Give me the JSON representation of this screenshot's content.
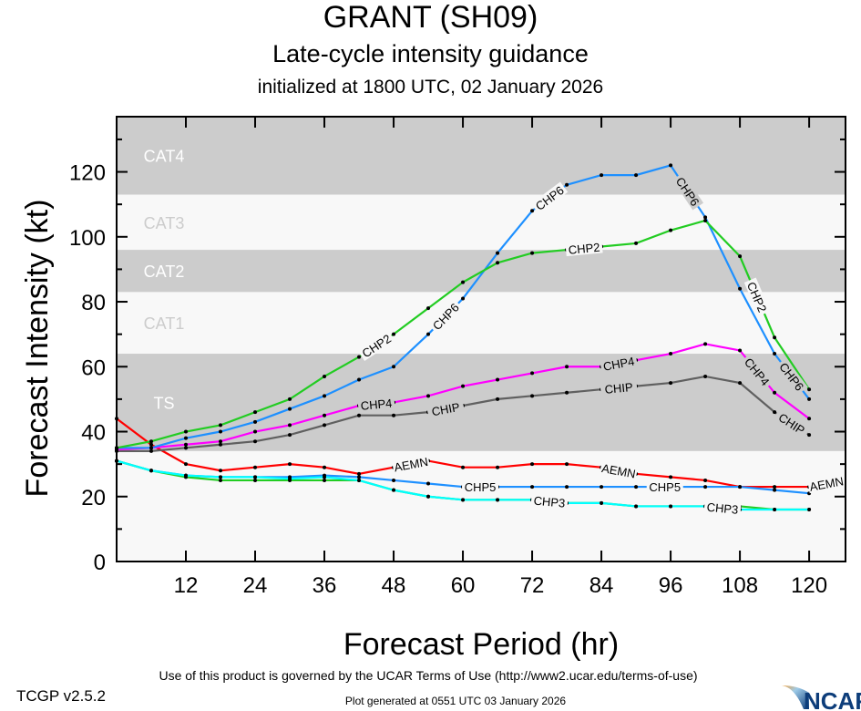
{
  "header": {
    "title": "GRANT (SH09)",
    "subtitle": "Late-cycle intensity guidance",
    "initialized": "initialized at 1800 UTC, 02 January 2026"
  },
  "footer": {
    "terms": "Use of this product is governed by the UCAR Terms of Use (http://www2.ucar.edu/terms-of-use)",
    "generated": "Plot generated at 0551 UTC   03 January 2026",
    "version": "TCGP v2.5.2",
    "logo_text": "NCAR"
  },
  "chart_data": {
    "type": "line",
    "xlabel": "Forecast Period (hr)",
    "ylabel": "Forecast Intensity (kt)",
    "xlim": [
      0,
      126.3
    ],
    "ylim": [
      0,
      137
    ],
    "xticks": [
      12,
      24,
      36,
      48,
      60,
      72,
      84,
      96,
      108,
      120
    ],
    "yticks": [
      0,
      20,
      40,
      60,
      80,
      100,
      120
    ],
    "grid": false,
    "bands": [
      {
        "label": "TS",
        "from": 34,
        "to": 64,
        "color": "#cccccc",
        "label_color": "#ffffff"
      },
      {
        "label": "CAT1",
        "from": 64,
        "to": 83,
        "color": "#f8f8f8",
        "label_color": "#cccccc"
      },
      {
        "label": "CAT2",
        "from": 83,
        "to": 96,
        "color": "#cccccc",
        "label_color": "#ffffff"
      },
      {
        "label": "CAT3",
        "from": 96,
        "to": 113,
        "color": "#f8f8f8",
        "label_color": "#cccccc"
      },
      {
        "label": "CAT4",
        "from": 113,
        "to": 137,
        "color": "#cccccc",
        "label_color": "#ffffff"
      },
      {
        "label": "",
        "from": 0,
        "to": 34,
        "color": "#f8f8f8",
        "label_color": "#cccccc"
      }
    ],
    "x": [
      0,
      6,
      12,
      18,
      24,
      30,
      36,
      42,
      48,
      54,
      60,
      66,
      72,
      78,
      84,
      90,
      96,
      102,
      108,
      114,
      120
    ],
    "series": [
      {
        "name": "AEMN",
        "color": "#ff0000",
        "x": [
          0,
          6,
          12,
          18,
          24,
          30,
          36,
          42,
          48,
          54,
          60,
          66,
          72,
          78,
          84,
          90,
          96,
          102,
          108,
          114,
          120,
          126
        ],
        "values": [
          44,
          36,
          30,
          28,
          29,
          30,
          29,
          27,
          29,
          31,
          29,
          29,
          30,
          30,
          29,
          27,
          26,
          25,
          23,
          23,
          23,
          25
        ]
      },
      {
        "name": "CHP5",
        "color": "#1e90ff",
        "values": [
          31,
          28,
          26.5,
          26,
          26,
          26,
          26.5,
          26,
          25,
          24,
          23,
          23,
          23,
          23,
          23,
          23,
          23,
          23,
          23,
          22,
          21
        ]
      },
      {
        "name": "",
        "color": "#22cc22",
        "values": [
          31,
          28,
          26,
          25,
          25,
          25,
          25,
          25,
          22,
          20,
          19,
          19,
          19,
          18,
          18,
          17,
          17,
          17,
          17,
          16,
          16
        ]
      },
      {
        "name": "CHP3",
        "color": "#00ffff",
        "values": [
          31,
          28,
          26.5,
          26,
          26,
          25.5,
          26,
          25,
          22,
          20,
          19,
          19,
          19,
          18,
          18,
          17,
          17,
          17,
          16,
          16,
          16
        ]
      },
      {
        "name": "CHIP",
        "color": "#606060",
        "values": [
          34,
          34,
          35,
          36,
          37,
          39,
          42,
          45,
          45,
          46,
          48,
          50,
          51,
          52,
          53,
          54,
          55,
          57,
          55,
          46,
          39
        ]
      },
      {
        "name": "CHP4",
        "color": "#ff00ff",
        "values": [
          34.5,
          35,
          36,
          37,
          40,
          42,
          45,
          48,
          49,
          51,
          54,
          56,
          58,
          60,
          60,
          62,
          64,
          67,
          65,
          52,
          44
        ]
      },
      {
        "name": "CHP6",
        "color": "#1e90ff",
        "values": [
          35,
          35,
          38,
          40,
          43,
          47,
          51,
          56,
          60,
          70,
          81,
          95,
          108,
          116,
          119,
          119,
          122,
          106,
          84,
          64,
          50
        ]
      },
      {
        "name": "CHP2",
        "color": "#22cc22",
        "values": [
          35,
          37,
          40,
          42,
          46,
          50,
          57,
          63,
          70,
          78,
          86,
          92,
          95,
          96,
          97,
          98,
          102,
          105,
          94,
          69,
          53
        ]
      }
    ]
  }
}
